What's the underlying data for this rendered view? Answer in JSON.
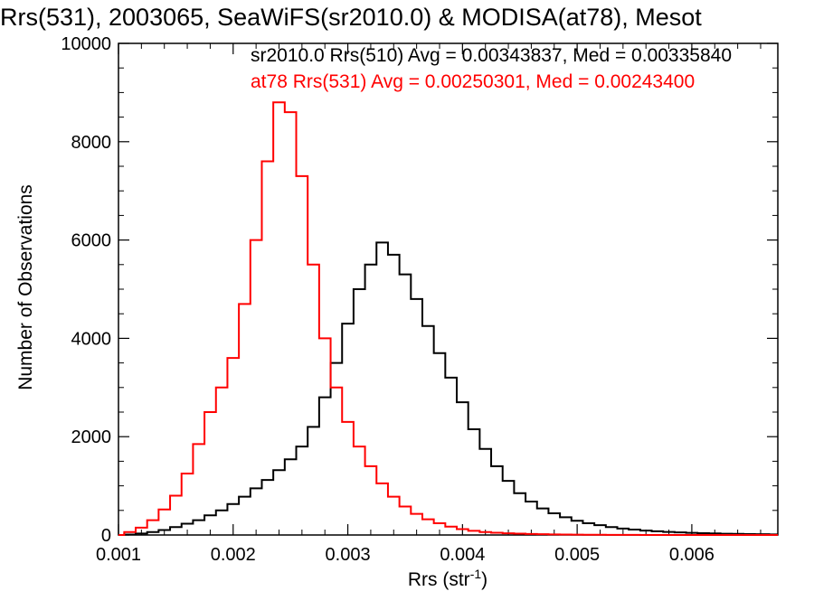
{
  "chart_data": {
    "type": "line",
    "title": "Rrs(531), 2003065, SeaWiFS(sr2010.0) & MODISA(at78), Mesot",
    "xlabel": "Rrs (str",
    "xlabel_sup": "-1",
    "xlabel_close": ")",
    "ylabel": "Number of Observations",
    "xlim": [
      0.001,
      0.00675
    ],
    "ylim": [
      0,
      10000
    ],
    "xticks": [
      0.001,
      0.002,
      0.003,
      0.004,
      0.005,
      0.006
    ],
    "xtick_labels": [
      "0.001",
      "0.002",
      "0.003",
      "0.004",
      "0.005",
      "0.006"
    ],
    "yticks": [
      0,
      2000,
      4000,
      6000,
      8000,
      10000
    ],
    "ytick_labels": [
      "0",
      "2000",
      "4000",
      "6000",
      "8000",
      "10000"
    ],
    "grid": false,
    "legend_placement": "top-right",
    "series": [
      {
        "name": "sr2010.0 Rrs(510) Avg = 0.00343837, Med = 0.00335840",
        "color": "#000000",
        "x": [
          0.001,
          0.0011,
          0.0012,
          0.0013,
          0.0014,
          0.0015,
          0.0016,
          0.0017,
          0.0018,
          0.0019,
          0.002,
          0.0021,
          0.0022,
          0.0023,
          0.0024,
          0.0025,
          0.0026,
          0.0027,
          0.0028,
          0.0029,
          0.003,
          0.0031,
          0.0032,
          0.0033,
          0.0034,
          0.0035,
          0.0036,
          0.0037,
          0.0038,
          0.0039,
          0.004,
          0.0041,
          0.0042,
          0.0043,
          0.0044,
          0.0045,
          0.0046,
          0.0047,
          0.0048,
          0.0049,
          0.005,
          0.0051,
          0.0052,
          0.0053,
          0.0054,
          0.0055,
          0.0056,
          0.0057,
          0.0058,
          0.0059,
          0.006,
          0.0061,
          0.0062,
          0.0063,
          0.0064,
          0.0065,
          0.0066,
          0.00675
        ],
        "y": [
          0,
          10,
          30,
          60,
          100,
          160,
          230,
          300,
          400,
          500,
          630,
          780,
          950,
          1120,
          1320,
          1540,
          1800,
          2200,
          2800,
          3500,
          4300,
          5000,
          5500,
          5950,
          5700,
          5300,
          4800,
          4250,
          3700,
          3200,
          2700,
          2150,
          1750,
          1400,
          1100,
          850,
          680,
          540,
          440,
          360,
          290,
          240,
          200,
          160,
          130,
          110,
          90,
          75,
          62,
          52,
          44,
          37,
          31,
          26,
          22,
          18,
          15,
          12
        ]
      },
      {
        "name": "at78 Rrs(531) Avg = 0.00250301, Med = 0.00243400",
        "color": "#ff0000",
        "x": [
          0.001,
          0.0011,
          0.0012,
          0.0013,
          0.0014,
          0.0015,
          0.0016,
          0.0017,
          0.0018,
          0.0019,
          0.002,
          0.0021,
          0.0022,
          0.0023,
          0.0024,
          0.0025,
          0.0026,
          0.0027,
          0.0028,
          0.0029,
          0.003,
          0.0031,
          0.0032,
          0.0033,
          0.0034,
          0.0035,
          0.0036,
          0.0037,
          0.0038,
          0.0039,
          0.004,
          0.0041,
          0.0042,
          0.0043,
          0.0044,
          0.0045,
          0.0046,
          0.0047,
          0.0048,
          0.0049,
          0.005,
          0.0051,
          0.0052,
          0.0053,
          0.0054,
          0.0055,
          0.0056,
          0.0057,
          0.0058,
          0.0059,
          0.006,
          0.0061,
          0.0062,
          0.0063,
          0.0064,
          0.0065,
          0.0066,
          0.00675
        ],
        "y": [
          0,
          60,
          150,
          300,
          520,
          800,
          1250,
          1850,
          2500,
          3000,
          3600,
          4700,
          6000,
          7600,
          8800,
          8600,
          7300,
          5500,
          4000,
          3000,
          2300,
          1800,
          1400,
          1050,
          780,
          580,
          430,
          320,
          240,
          170,
          120,
          85,
          60,
          45,
          35,
          27,
          20,
          15,
          12,
          9,
          7,
          5,
          4,
          3,
          2,
          2,
          1,
          1,
          1,
          0,
          0,
          0,
          0,
          0,
          0,
          0,
          0,
          0
        ]
      }
    ]
  }
}
